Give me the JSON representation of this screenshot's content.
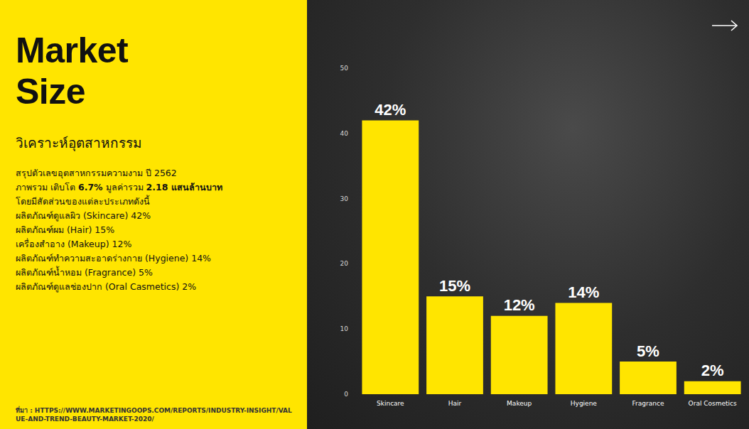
{
  "sidebar": {
    "title": "Market Size",
    "subtitle": "วิเคราะห์อุตสาหกรรม",
    "lines": [
      [
        {
          "text": "สรุปตัวเลขอุตสาหกรรมความงาม ปี 2562",
          "bold": false
        }
      ],
      [
        {
          "text": "ภาพรวม เติบโต ",
          "bold": false
        },
        {
          "text": "6.7%",
          "bold": true
        },
        {
          "text": " มูลค่ารวม ",
          "bold": false
        },
        {
          "text": "2.18 แสนล้านบาท",
          "bold": true
        }
      ],
      [
        {
          "text": "โดยมีสัดส่วนของแต่ละประเภทดังนี้",
          "bold": false
        }
      ],
      [
        {
          "text": "ผลิตภัณฑ์ดูแลผิว (Skincare) 42%",
          "bold": false
        }
      ],
      [
        {
          "text": "ผลิตภัณฑ์ผม (Hair) 15%",
          "bold": false
        }
      ],
      [
        {
          "text": "เครื่องสำอาง (Makeup) 12%",
          "bold": false
        }
      ],
      [
        {
          "text": "ผลิตภัณฑ์ทำความสะอาดร่างกาย (Hygiene) 14%",
          "bold": false
        }
      ],
      [
        {
          "text": "ผลิตภัณฑ์น้ำหอม (Fragrance) 5%",
          "bold": false
        }
      ],
      [
        {
          "text": "ผลิตภัณฑ์ดูแลช่องปาก (Oral Casmetics) 2%",
          "bold": false
        }
      ]
    ],
    "source": "ที่มา : HTTPS://WWW.MARKETINGOOPS.COM/REPORTS/INDUSTRY-INSIGHT/VALUE-AND-TREND-BEAUTY-MARKET-2020/"
  },
  "chart_data": {
    "type": "bar",
    "categories": [
      "Skincare",
      "Hair",
      "Makeup",
      "Hygiene",
      "Fragrance",
      "Oral Cosmetics"
    ],
    "values": [
      42,
      15,
      12,
      14,
      5,
      2
    ],
    "value_labels": [
      "42%",
      "15%",
      "12%",
      "14%",
      "5%",
      "2%"
    ],
    "data_labels": true,
    "color": "#ffe500",
    "ylim": [
      0,
      50
    ],
    "yticks": [
      0,
      10,
      20,
      30,
      40,
      50
    ],
    "grid": false
  }
}
